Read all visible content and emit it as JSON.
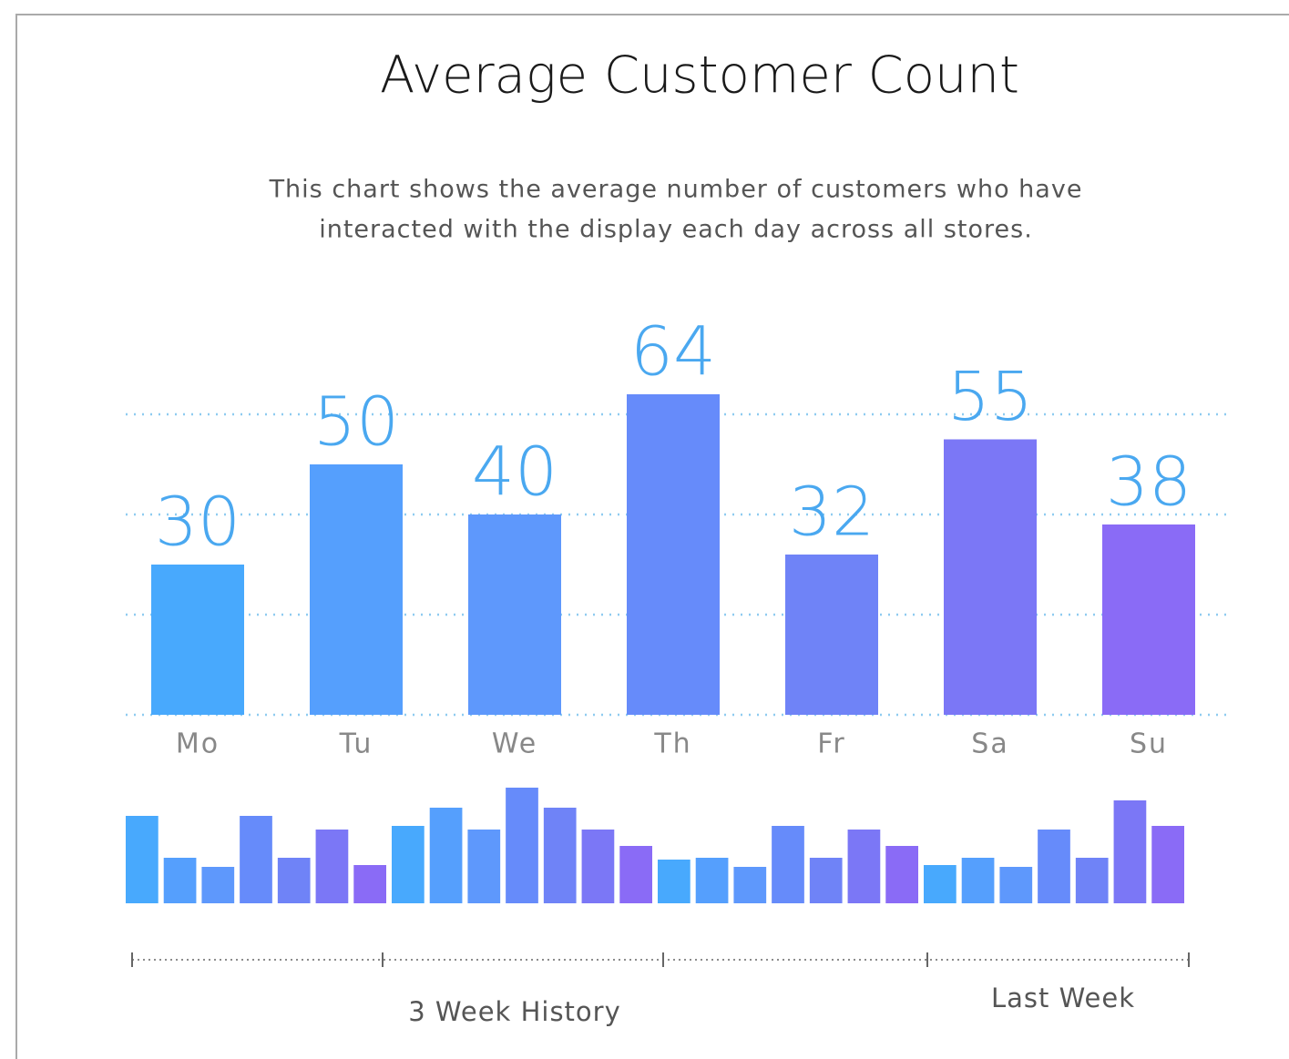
{
  "chart_data": [
    {
      "type": "bar",
      "title": "Average Customer Count",
      "subtitle": [
        "This chart shows the average number of customers who have",
        "interacted with the display each day across all stores."
      ],
      "categories": [
        "Mo",
        "Tu",
        "We",
        "Th",
        "Fr",
        "Sa",
        "Su"
      ],
      "values": [
        30,
        50,
        40,
        64,
        32,
        55,
        38
      ],
      "colors": [
        "#48a9fd",
        "#559ffd",
        "#5e98fc",
        "#668bfa",
        "#6f83f7",
        "#7b77f6",
        "#8a6bf6"
      ],
      "label_color": "#4aa8f0",
      "ylim": [
        0,
        70
      ],
      "yticks": [
        0,
        20,
        40,
        60
      ],
      "grid": true
    },
    {
      "type": "bar",
      "values": [
        96,
        50,
        40,
        96,
        50,
        81,
        42,
        85,
        105,
        81,
        127,
        105,
        81,
        63,
        48,
        50,
        40,
        85,
        50,
        81,
        63,
        42,
        50,
        40,
        81,
        50,
        113,
        85
      ],
      "colors": [
        "#48a9fd",
        "#559ffd",
        "#5e98fc",
        "#668bfa",
        "#6f83f7",
        "#7b77f6",
        "#8a6bf6"
      ],
      "ylim": [
        0,
        130
      ],
      "annotations": [
        "3 Week History",
        "Last Week"
      ]
    }
  ]
}
